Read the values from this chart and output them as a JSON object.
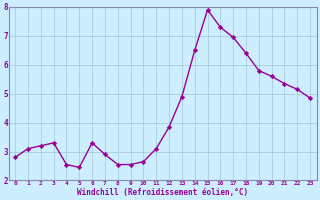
{
  "x": [
    0,
    1,
    2,
    3,
    4,
    5,
    6,
    7,
    8,
    9,
    10,
    11,
    12,
    13,
    14,
    15,
    16,
    17,
    18,
    19,
    20,
    21,
    22,
    23
  ],
  "y": [
    2.8,
    3.1,
    3.2,
    3.3,
    2.55,
    2.45,
    3.3,
    2.9,
    2.55,
    2.55,
    2.65,
    3.1,
    3.85,
    4.9,
    6.5,
    7.9,
    7.3,
    6.95,
    6.4,
    5.8,
    5.6,
    5.35,
    5.15,
    4.85
  ],
  "line_color": "#990099",
  "marker": "D",
  "markersize": 2.2,
  "linewidth": 1.0,
  "bg_color": "#cceeff",
  "grid_color": "#aaccdd",
  "xlabel": "Windchill (Refroidissement éolien,°C)",
  "ylim": [
    2,
    8
  ],
  "xlim_min": -0.5,
  "xlim_max": 23.5,
  "yticks": [
    2,
    3,
    4,
    5,
    6,
    7,
    8
  ],
  "xticks": [
    0,
    1,
    2,
    3,
    4,
    5,
    6,
    7,
    8,
    9,
    10,
    11,
    12,
    13,
    14,
    15,
    16,
    17,
    18,
    19,
    20,
    21,
    22,
    23
  ],
  "tick_color": "#990099",
  "label_color": "#990099",
  "spine_color": "#8888aa"
}
